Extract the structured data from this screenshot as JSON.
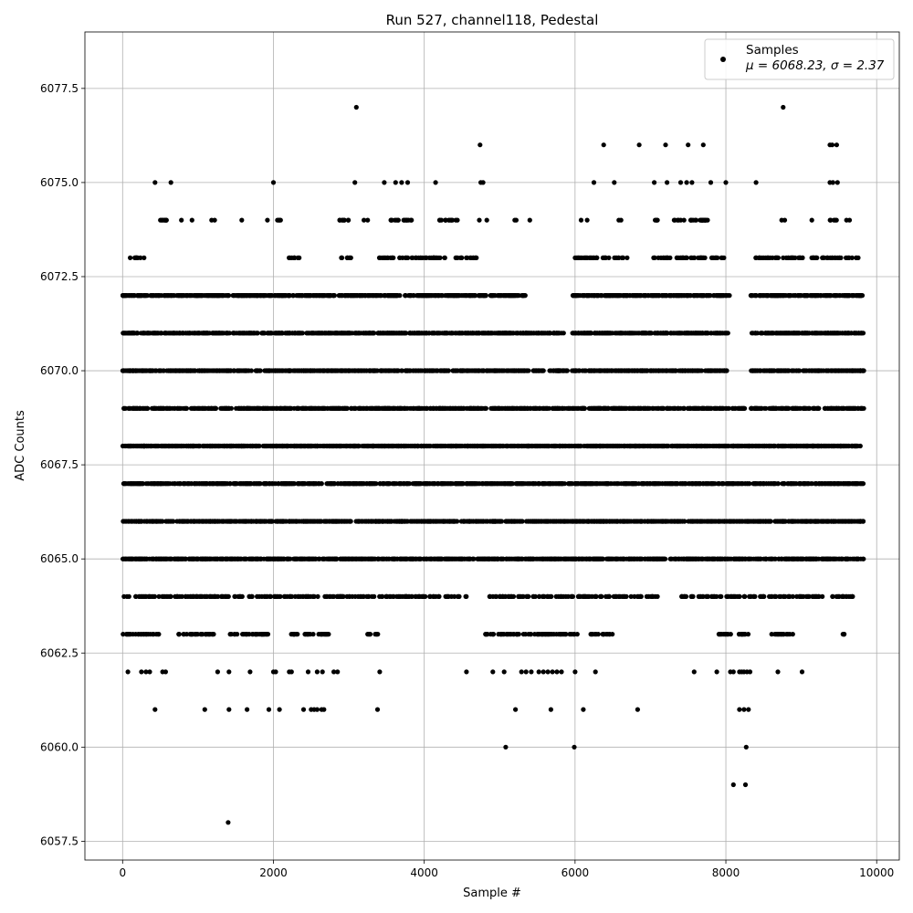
{
  "chart_data": {
    "type": "scatter",
    "title": "Run 527, channel118, Pedestal",
    "xlabel": "Sample #",
    "ylabel": "ADC Counts",
    "xlim": [
      -500,
      10300
    ],
    "ylim": [
      6057.0,
      6079.0
    ],
    "xticks": [
      0,
      2000,
      4000,
      6000,
      8000,
      10000
    ],
    "xtick_labels": [
      "0",
      "2000",
      "4000",
      "6000",
      "8000",
      "10000"
    ],
    "yticks": [
      6057.5,
      6060.0,
      6062.5,
      6065.0,
      6067.5,
      6070.0,
      6072.5,
      6075.0,
      6077.5
    ],
    "ytick_labels": [
      "6057.5",
      "6060.0",
      "6062.5",
      "6065.0",
      "6067.5",
      "6070.0",
      "6072.5",
      "6075.0",
      "6077.5"
    ],
    "grid": true,
    "legend": {
      "position": "top-right",
      "series_label": "Samples",
      "stats_label": "μ = 6068.23, σ = 2.37"
    },
    "marker_color": "#000000",
    "series": [
      {
        "name": "Samples",
        "n_samples": 9830,
        "mean": 6068.23,
        "std": 2.37,
        "dense_levels": [
          {
            "y": 6063,
            "ranges": [
              [
                0,
                480
              ],
              [
                700,
                1250
              ],
              [
                1400,
                2000
              ],
              [
                2200,
                2750
              ],
              [
                3250,
                3400
              ],
              [
                4800,
                6050
              ],
              [
                6200,
                6500
              ],
              [
                7900,
                8300
              ],
              [
                8600,
                8900
              ],
              [
                9500,
                9580
              ]
            ]
          },
          {
            "y": 6064,
            "ranges": [
              [
                0,
                3500
              ],
              [
                3500,
                4600
              ],
              [
                4800,
                6150
              ],
              [
                6100,
                7100
              ],
              [
                7400,
                8000
              ],
              [
                8000,
                8700
              ],
              [
                8700,
                9700
              ]
            ]
          },
          {
            "y": 6065,
            "ranges": [
              [
                0,
                9830
              ]
            ]
          },
          {
            "y": 6066,
            "ranges": [
              [
                0,
                9830
              ]
            ]
          },
          {
            "y": 6067,
            "ranges": [
              [
                0,
                4190
              ],
              [
                4210,
                9830
              ]
            ]
          },
          {
            "y": 6068,
            "ranges": [
              [
                0,
                9830
              ]
            ]
          },
          {
            "y": 6069,
            "ranges": [
              [
                0,
                8040
              ],
              [
                8080,
                8250
              ],
              [
                8330,
                9830
              ]
            ]
          },
          {
            "y": 6070,
            "ranges": [
              [
                0,
                5900
              ],
              [
                5960,
                8030
              ],
              [
                8330,
                9830
              ]
            ]
          },
          {
            "y": 6071,
            "ranges": [
              [
                0,
                5850
              ],
              [
                5960,
                8030
              ],
              [
                8330,
                9830
              ]
            ]
          },
          {
            "y": 6072,
            "ranges": [
              [
                0,
                5350
              ],
              [
                5960,
                8050
              ],
              [
                8330,
                9830
              ]
            ]
          },
          {
            "y": 6073,
            "ranges": [
              [
                100,
                300
              ],
              [
                2200,
                2350
              ],
              [
                2900,
                3050
              ],
              [
                3400,
                4300
              ],
              [
                4400,
                4700
              ],
              [
                5950,
                6700
              ],
              [
                7000,
                8000
              ],
              [
                8370,
                9830
              ]
            ]
          },
          {
            "y": 6074,
            "ranges": [
              [
                500,
                650
              ],
              [
                2050,
                2100
              ],
              [
                2850,
                3000
              ],
              [
                3550,
                3850
              ],
              [
                4200,
                4450
              ],
              [
                7050,
                7100
              ],
              [
                7300,
                7800
              ],
              [
                9380,
                9470
              ]
            ]
          }
        ],
        "sparse_points": [
          [
            430,
            6075
          ],
          [
            640,
            6075
          ],
          [
            2000,
            6075
          ],
          [
            3080,
            6075
          ],
          [
            3470,
            6075
          ],
          [
            3620,
            6075
          ],
          [
            3700,
            6075
          ],
          [
            3780,
            6075
          ],
          [
            4150,
            6075
          ],
          [
            4750,
            6075
          ],
          [
            4780,
            6075
          ],
          [
            6250,
            6075
          ],
          [
            6520,
            6075
          ],
          [
            7050,
            6075
          ],
          [
            7220,
            6075
          ],
          [
            7400,
            6075
          ],
          [
            7480,
            6075
          ],
          [
            7550,
            6075
          ],
          [
            7800,
            6075
          ],
          [
            8000,
            6075
          ],
          [
            8400,
            6075
          ],
          [
            9380,
            6075
          ],
          [
            9420,
            6075
          ],
          [
            9480,
            6075
          ],
          [
            3100,
            6077
          ],
          [
            8760,
            6077
          ],
          [
            4740,
            6076
          ],
          [
            6380,
            6076
          ],
          [
            6850,
            6076
          ],
          [
            7200,
            6076
          ],
          [
            7500,
            6076
          ],
          [
            7700,
            6076
          ],
          [
            9380,
            6076
          ],
          [
            9410,
            6076
          ],
          [
            9470,
            6076
          ],
          [
            780,
            6074
          ],
          [
            920,
            6074
          ],
          [
            1180,
            6074
          ],
          [
            1220,
            6074
          ],
          [
            1580,
            6074
          ],
          [
            1920,
            6074
          ],
          [
            3200,
            6074
          ],
          [
            3250,
            6074
          ],
          [
            4730,
            6074
          ],
          [
            4830,
            6074
          ],
          [
            5200,
            6074
          ],
          [
            5220,
            6074
          ],
          [
            5400,
            6074
          ],
          [
            6080,
            6074
          ],
          [
            6160,
            6074
          ],
          [
            6580,
            6074
          ],
          [
            6610,
            6074
          ],
          [
            8740,
            6074
          ],
          [
            8780,
            6074
          ],
          [
            9140,
            6074
          ],
          [
            9600,
            6074
          ],
          [
            9640,
            6074
          ],
          [
            70,
            6062
          ],
          [
            250,
            6062
          ],
          [
            310,
            6062
          ],
          [
            360,
            6062
          ],
          [
            530,
            6062
          ],
          [
            570,
            6062
          ],
          [
            1260,
            6062
          ],
          [
            1410,
            6062
          ],
          [
            1690,
            6062
          ],
          [
            2000,
            6062
          ],
          [
            2030,
            6062
          ],
          [
            2210,
            6062
          ],
          [
            2240,
            6062
          ],
          [
            2460,
            6062
          ],
          [
            2580,
            6062
          ],
          [
            2650,
            6062
          ],
          [
            2800,
            6062
          ],
          [
            2850,
            6062
          ],
          [
            3410,
            6062
          ],
          [
            4560,
            6062
          ],
          [
            4910,
            6062
          ],
          [
            5060,
            6062
          ],
          [
            5290,
            6062
          ],
          [
            5350,
            6062
          ],
          [
            5420,
            6062
          ],
          [
            5520,
            6062
          ],
          [
            5580,
            6062
          ],
          [
            5640,
            6062
          ],
          [
            5700,
            6062
          ],
          [
            5760,
            6062
          ],
          [
            5820,
            6062
          ],
          [
            6000,
            6062
          ],
          [
            6270,
            6062
          ],
          [
            7580,
            6062
          ],
          [
            7880,
            6062
          ],
          [
            8060,
            6062
          ],
          [
            8100,
            6062
          ],
          [
            8180,
            6062
          ],
          [
            8210,
            6062
          ],
          [
            8240,
            6062
          ],
          [
            8280,
            6062
          ],
          [
            8320,
            6062
          ],
          [
            8690,
            6062
          ],
          [
            9010,
            6062
          ],
          [
            430,
            6061
          ],
          [
            1090,
            6061
          ],
          [
            1410,
            6061
          ],
          [
            1650,
            6061
          ],
          [
            1940,
            6061
          ],
          [
            2080,
            6061
          ],
          [
            2400,
            6061
          ],
          [
            2500,
            6061
          ],
          [
            2540,
            6061
          ],
          [
            2580,
            6061
          ],
          [
            2640,
            6061
          ],
          [
            2670,
            6061
          ],
          [
            3380,
            6061
          ],
          [
            5210,
            6061
          ],
          [
            5680,
            6061
          ],
          [
            6110,
            6061
          ],
          [
            6830,
            6061
          ],
          [
            8180,
            6061
          ],
          [
            8240,
            6061
          ],
          [
            8300,
            6061
          ],
          [
            5080,
            6060
          ],
          [
            5990,
            6060
          ],
          [
            8270,
            6060
          ],
          [
            8100,
            6059
          ],
          [
            8260,
            6059
          ],
          [
            1400,
            6058
          ]
        ]
      }
    ]
  }
}
